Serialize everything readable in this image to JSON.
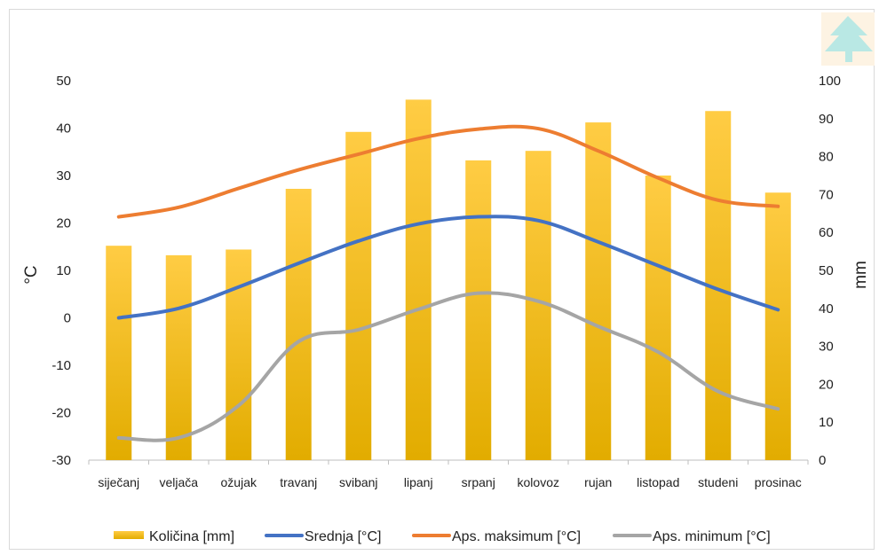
{
  "chart_data": {
    "type": "bar+line",
    "categories": [
      "siječanj",
      "veljača",
      "ožujak",
      "travanj",
      "svibanj",
      "lipanj",
      "srpanj",
      "kolovoz",
      "rujan",
      "listopad",
      "studeni",
      "prosinac"
    ],
    "y_left": {
      "label": "°C",
      "ylim": [
        -30,
        50
      ],
      "ticks": [
        "50",
        "40",
        "30",
        "20",
        "10",
        "0",
        "-10",
        "-20",
        "-30"
      ]
    },
    "y_right": {
      "label": "mm",
      "ylim": [
        0,
        100
      ],
      "ticks": [
        "100",
        "90",
        "80",
        "70",
        "60",
        "50",
        "40",
        "30",
        "20",
        "10",
        "0"
      ]
    },
    "grid": false,
    "legend_position": "bottom",
    "series": [
      {
        "name": "Količina [mm]",
        "type": "bar",
        "axis": "right",
        "color": "#ffc000",
        "values": [
          56.5,
          54,
          55.5,
          71.5,
          86.5,
          95,
          79,
          81.5,
          89,
          75,
          92,
          70.5
        ]
      },
      {
        "name": "Srednja [°C]",
        "type": "line",
        "axis": "left",
        "color": "#4472c4",
        "values": [
          0,
          2,
          6.5,
          11.5,
          16.2,
          19.8,
          21.3,
          20.5,
          16,
          11,
          6,
          1.7
        ]
      },
      {
        "name": "Aps. maksimum [°C]",
        "type": "line",
        "axis": "left",
        "color": "#ed7d31",
        "values": [
          21.3,
          23.3,
          27.3,
          31.2,
          34.5,
          37.8,
          39.8,
          39.9,
          35.2,
          29.5,
          24.8,
          23.5
        ]
      },
      {
        "name": "Aps. minimum [°C]",
        "type": "line",
        "axis": "left",
        "color": "#a5a5a5",
        "values": [
          -25.3,
          -25.3,
          -18.5,
          -5,
          -2.5,
          1.8,
          5.2,
          3.5,
          -1.8,
          -7.2,
          -15.5,
          -19.2
        ]
      }
    ]
  },
  "logo": {
    "name": "tree-logo-icon"
  }
}
